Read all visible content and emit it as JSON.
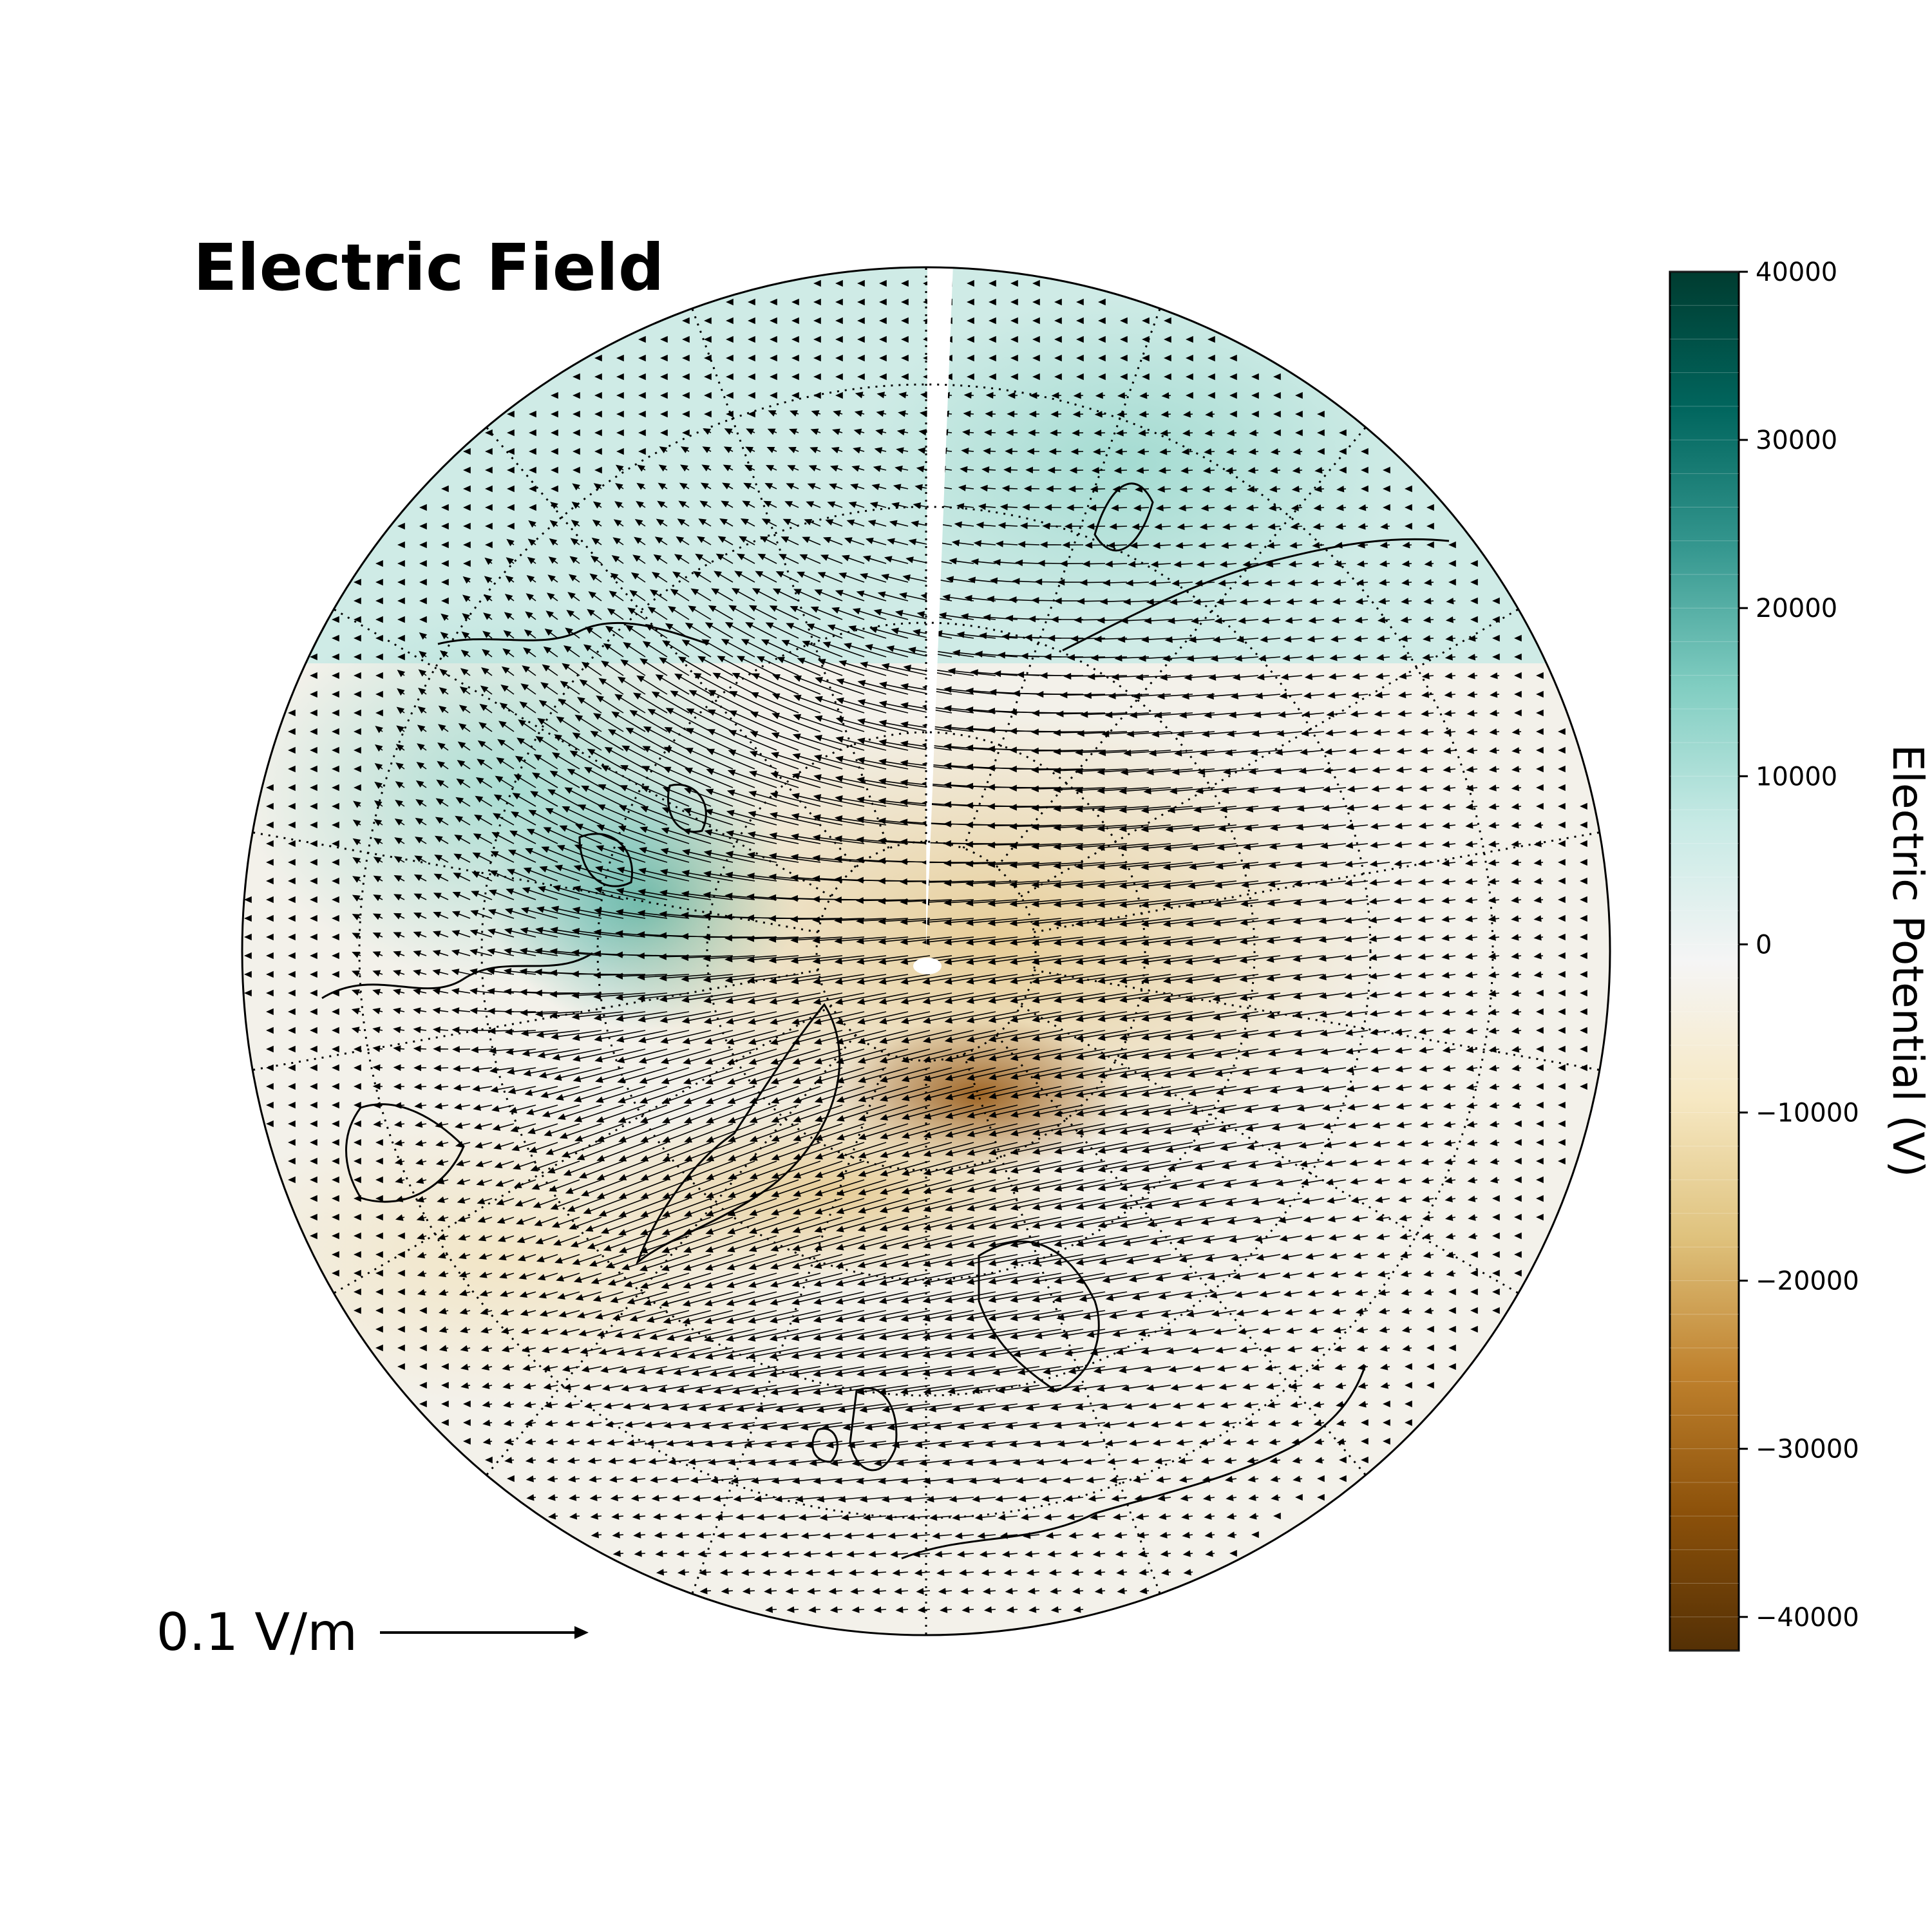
{
  "title": "Electric Field",
  "colorbar": {
    "label": "Electric Potential (V)",
    "min": -42000,
    "max": 40000,
    "ticks": [
      "40000",
      "30000",
      "20000",
      "10000",
      "0",
      "−10000",
      "−20000",
      "−30000",
      "−40000"
    ],
    "tick_values": [
      40000,
      30000,
      20000,
      10000,
      0,
      -10000,
      -20000,
      -30000,
      -40000
    ],
    "colormap": "BrBG",
    "colors": [
      "#543005",
      "#8c510a",
      "#bf812d",
      "#dfc27d",
      "#f6e8c3",
      "#f5f5f5",
      "#c7eae5",
      "#80cdc1",
      "#35978f",
      "#01665e",
      "#003c30"
    ]
  },
  "quiver_key": {
    "label": "0.1 V/m",
    "magnitude": 0.1
  },
  "map": {
    "projection": "north polar stereographic",
    "graticule": "dotted",
    "coastlines": true
  }
}
